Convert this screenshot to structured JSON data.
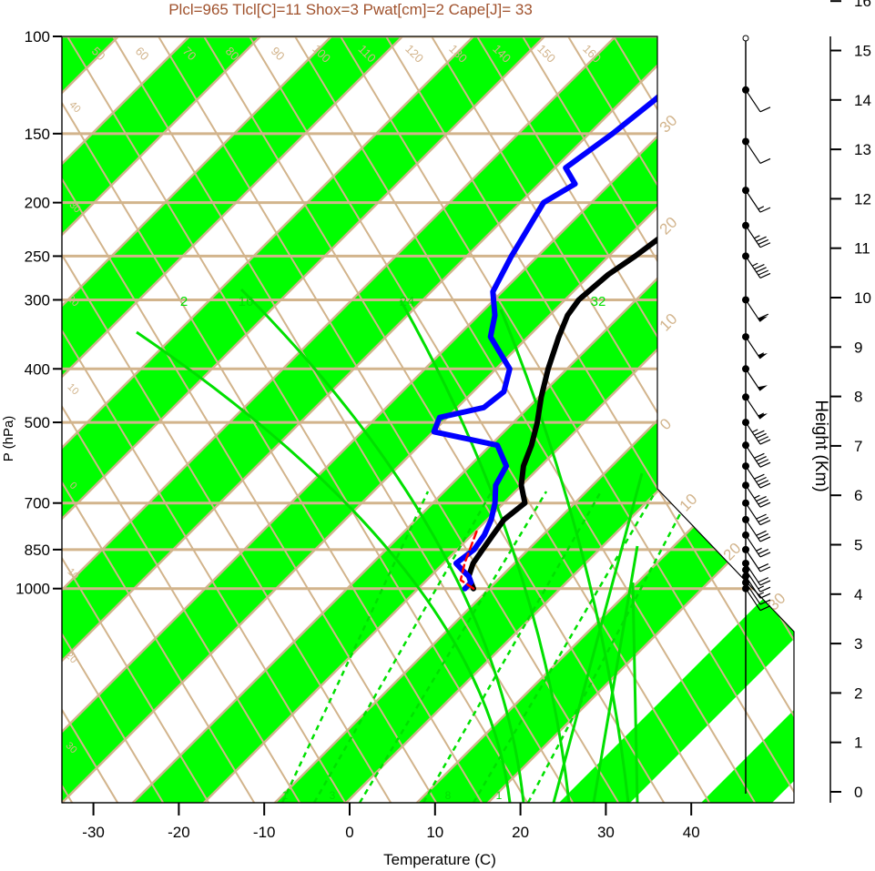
{
  "header": {
    "title": "Plcl=965 Tlcl[C]=11 Shox=3 Pwat[cm]=2 Cape[J]= 33"
  },
  "colors": {
    "title": "#a0522d",
    "isotherm": "#d2b48c",
    "band_fill": "#00ff00",
    "mixing_ratio": "#00e000",
    "temperature": "#000000",
    "dewpoint": "#0000ff",
    "parcel": "#ff0000"
  },
  "chart_data": {
    "type": "line",
    "chart_kind": "skew-T log-P diagram",
    "xlabel": "Temperature (C)",
    "ylabel": "P (hPa)",
    "y2label": "Height (Km)",
    "xlim": [
      -33,
      36
    ],
    "ylim": [
      1050,
      100
    ],
    "y_scale": "log",
    "x_ticks": [
      -30,
      -20,
      -10,
      0,
      10,
      20,
      30,
      40
    ],
    "pressure_ticks": [
      100,
      150,
      200,
      250,
      300,
      400,
      500,
      700,
      850,
      1000
    ],
    "height_ticks": [
      0,
      1,
      2,
      3,
      4,
      5,
      6,
      7,
      8,
      9,
      10,
      11,
      12,
      13,
      14,
      15,
      16
    ],
    "isotherm_labels": [
      "50",
      "60",
      "70",
      "80",
      "90",
      "100",
      "110",
      "120",
      "130",
      "140",
      "150",
      "160"
    ],
    "isotherm_right_labels": [
      "30",
      "20",
      "10",
      "0",
      "10",
      "20",
      "30"
    ],
    "isotherm_left_labels": [
      "40",
      "30",
      "20",
      "10",
      "0",
      "10",
      "20",
      "30"
    ],
    "mixing_ratio_labels": [
      "2",
      "16",
      "24",
      "32"
    ],
    "mixing_ratio_bottom_labels": [
      "1",
      "3",
      "8",
      "1"
    ],
    "series": [
      {
        "name": "temperature",
        "points": [
          [
            1000,
            14.5
          ],
          [
            975,
            13.5
          ],
          [
            950,
            12.5
          ],
          [
            900,
            11.5
          ],
          [
            850,
            11.0
          ],
          [
            800,
            10.5
          ],
          [
            750,
            10.0
          ],
          [
            700,
            10.5
          ],
          [
            650,
            8.0
          ],
          [
            600,
            6.0
          ],
          [
            550,
            4.5
          ],
          [
            500,
            2.5
          ],
          [
            450,
            0.0
          ],
          [
            400,
            -2.5
          ],
          [
            350,
            -5.0
          ],
          [
            320,
            -6.5
          ],
          [
            300,
            -7.0
          ],
          [
            270,
            -6.5
          ],
          [
            250,
            -5.5
          ],
          [
            225,
            -4.5
          ],
          [
            200,
            -2.0
          ],
          [
            180,
            0.0
          ],
          [
            160,
            2.0
          ],
          [
            140,
            5.0
          ],
          [
            125,
            9.0
          ],
          [
            115,
            10.0
          ],
          [
            108,
            12.0
          ],
          [
            102,
            13.5
          ]
        ]
      },
      {
        "name": "dewpoint",
        "points": [
          [
            1000,
            13.5
          ],
          [
            975,
            13.5
          ],
          [
            950,
            12.5
          ],
          [
            925,
            11.0
          ],
          [
            900,
            9.5
          ],
          [
            850,
            10.0
          ],
          [
            800,
            9.5
          ],
          [
            750,
            8.5
          ],
          [
            700,
            7.0
          ],
          [
            650,
            5.0
          ],
          [
            600,
            4.0
          ],
          [
            550,
            0.5
          ],
          [
            520,
            -8.5
          ],
          [
            490,
            -9.5
          ],
          [
            470,
            -5.5
          ],
          [
            440,
            -5.0
          ],
          [
            400,
            -7.0
          ],
          [
            350,
            -13.0
          ],
          [
            320,
            -15.0
          ],
          [
            290,
            -18.0
          ],
          [
            250,
            -20.0
          ],
          [
            200,
            -22.5
          ],
          [
            185,
            -21.0
          ],
          [
            173,
            -24.0
          ],
          [
            150,
            -22.5
          ],
          [
            130,
            -21.5
          ],
          [
            112,
            -21.0
          ],
          [
            104,
            -20.0
          ]
        ]
      },
      {
        "name": "parcel",
        "points": [
          [
            1000,
            14.5
          ],
          [
            965,
            12.0
          ],
          [
            900,
            10.5
          ],
          [
            850,
            9.5
          ],
          [
            780,
            8.0
          ]
        ]
      }
    ],
    "wind_barbs": [
      {
        "pressure": 1000,
        "speed": 10
      },
      {
        "pressure": 975,
        "speed": 10
      },
      {
        "pressure": 950,
        "speed": 15
      },
      {
        "pressure": 925,
        "speed": 15
      },
      {
        "pressure": 900,
        "speed": 20
      },
      {
        "pressure": 850,
        "speed": 20
      },
      {
        "pressure": 800,
        "speed": 25
      },
      {
        "pressure": 750,
        "speed": 30
      },
      {
        "pressure": 700,
        "speed": 30
      },
      {
        "pressure": 650,
        "speed": 35
      },
      {
        "pressure": 600,
        "speed": 40
      },
      {
        "pressure": 550,
        "speed": 40
      },
      {
        "pressure": 500,
        "speed": 45
      },
      {
        "pressure": 450,
        "speed": 55
      },
      {
        "pressure": 400,
        "speed": 50
      },
      {
        "pressure": 350,
        "speed": 55
      },
      {
        "pressure": 300,
        "speed": 60
      },
      {
        "pressure": 250,
        "speed": 45
      },
      {
        "pressure": 220,
        "speed": 35
      },
      {
        "pressure": 190,
        "speed": 15
      },
      {
        "pressure": 155,
        "speed": 10
      },
      {
        "pressure": 125,
        "speed": 10
      }
    ]
  }
}
